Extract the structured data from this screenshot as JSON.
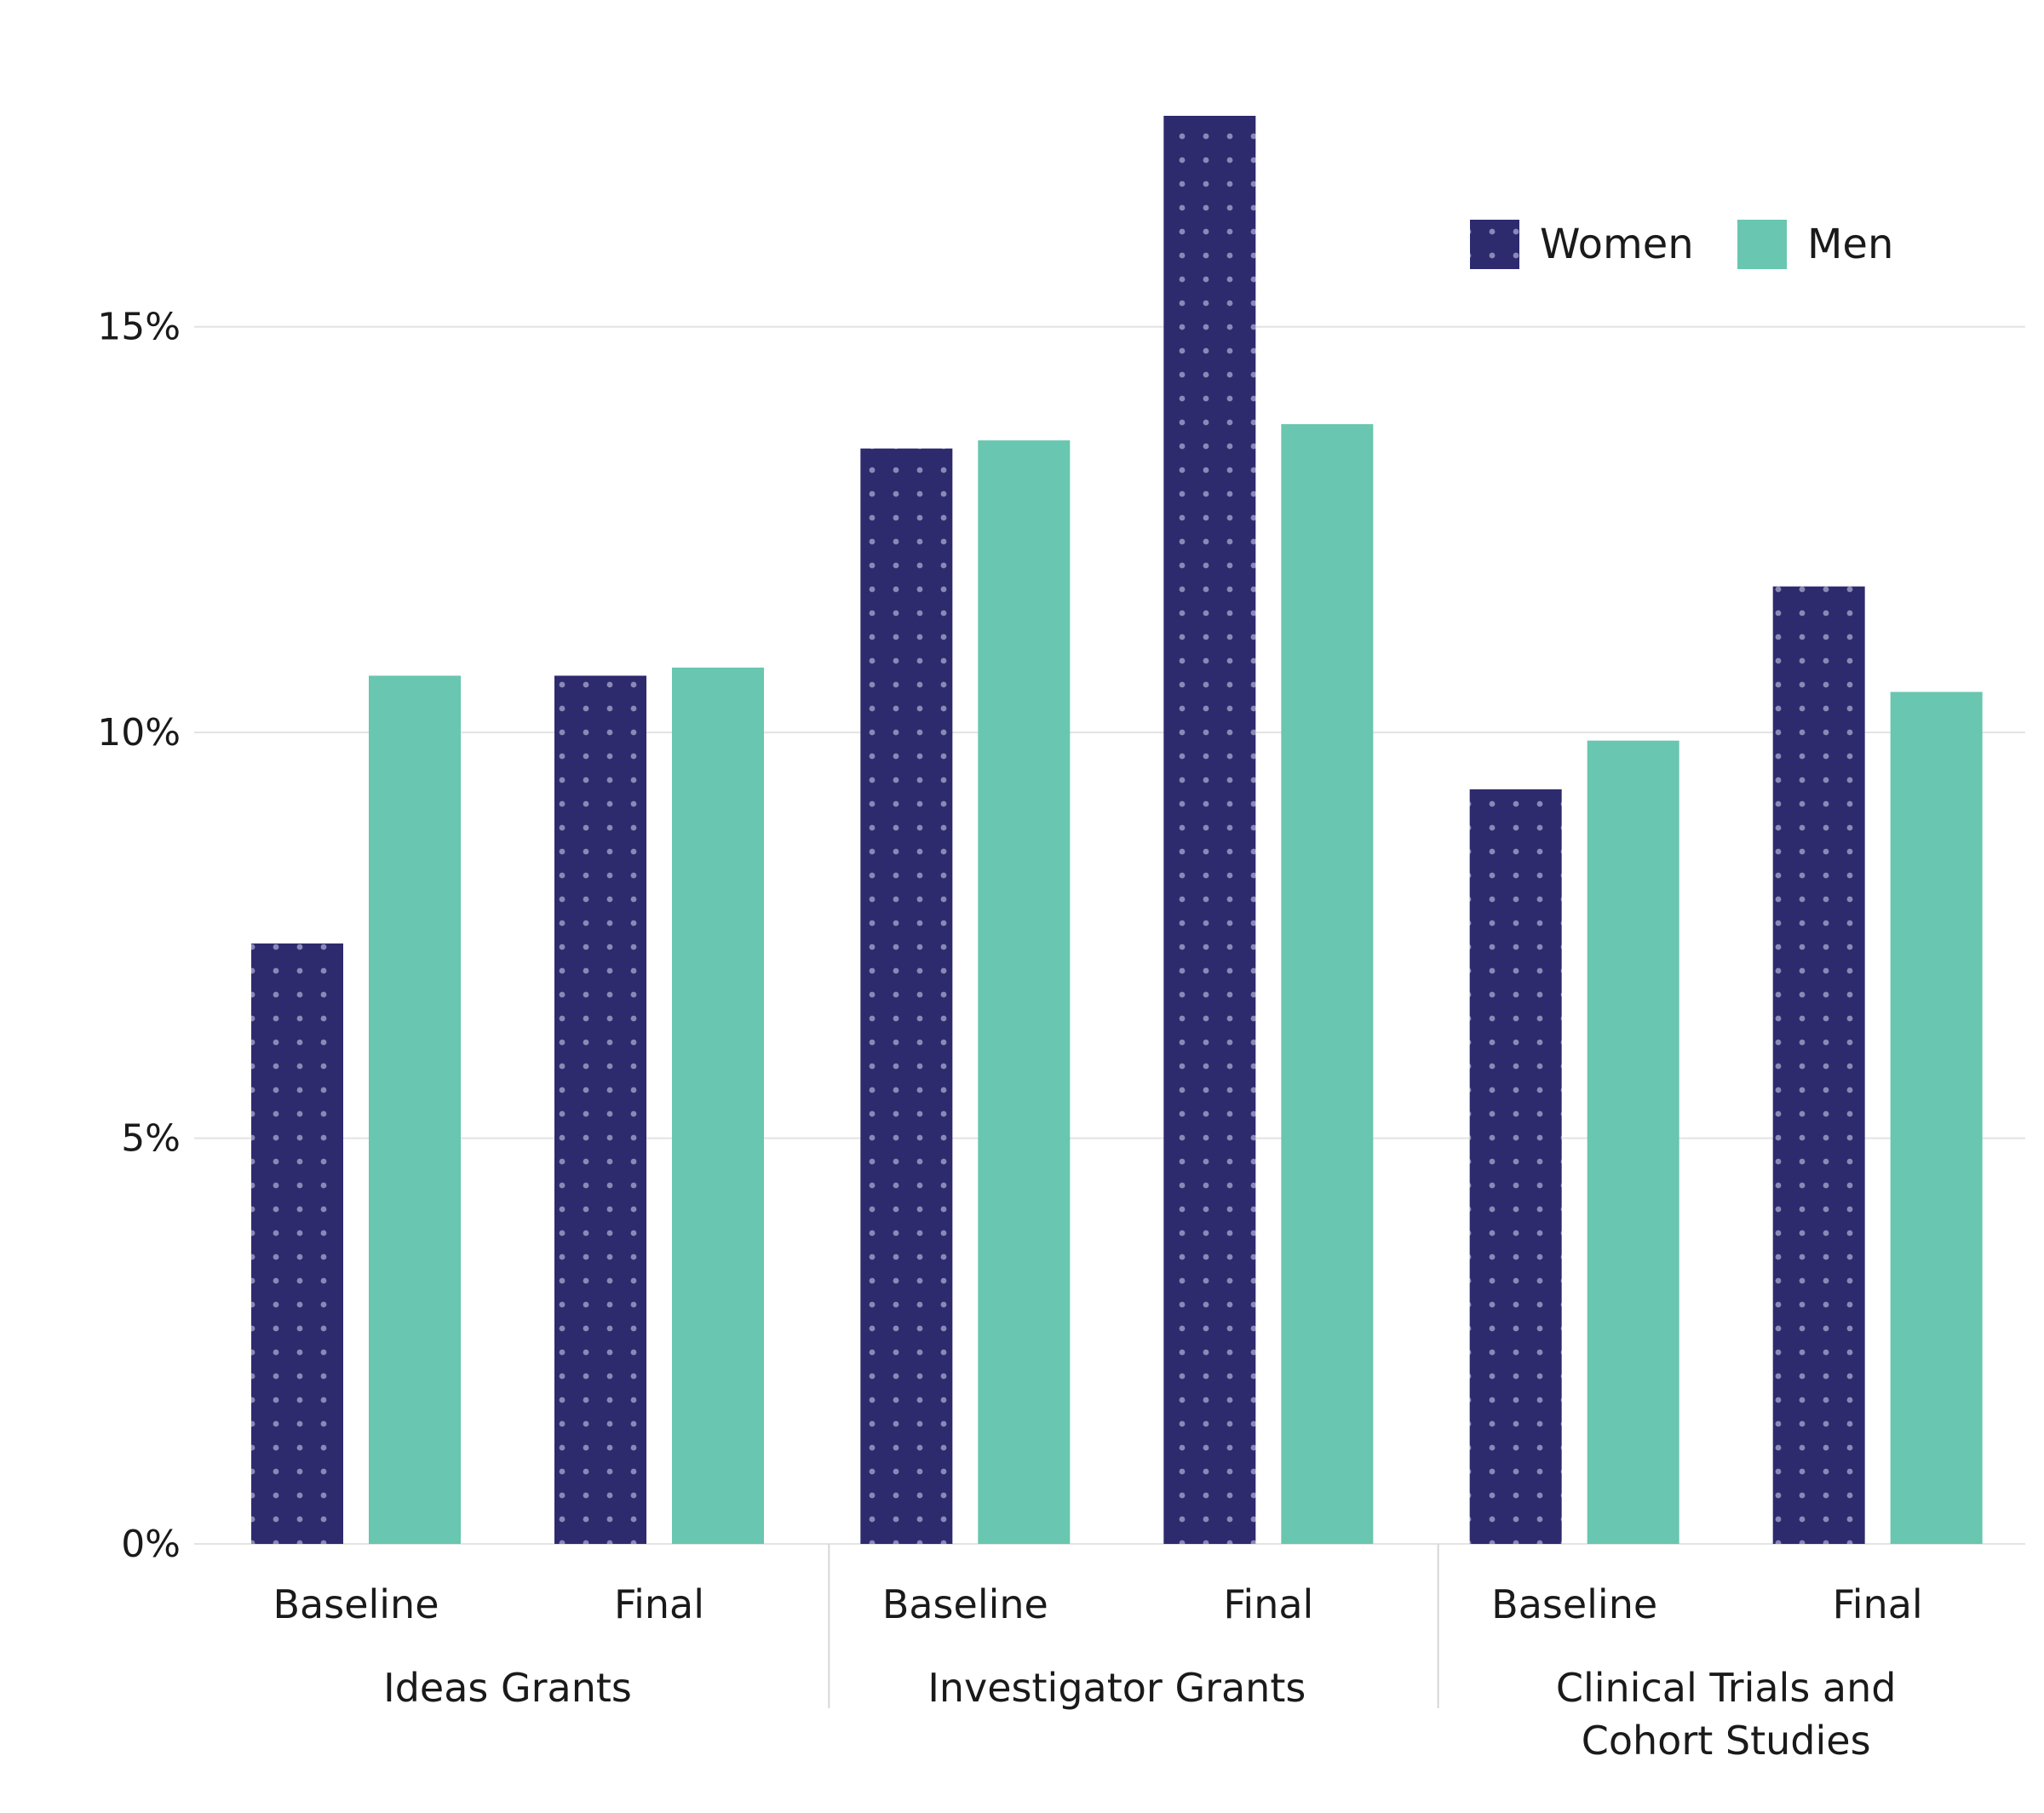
{
  "chart_data": {
    "type": "bar",
    "title": "",
    "xlabel": "",
    "ylabel": "",
    "ylim": [
      0,
      17.6
    ],
    "yticks": [
      0,
      5,
      10,
      15
    ],
    "ytick_labels": [
      "0%",
      "5%",
      "10%",
      "15%"
    ],
    "legend_position": "top-right",
    "grid": true,
    "groups": [
      {
        "name": "Ideas Grants",
        "label_lines": [
          "Ideas Grants"
        ],
        "categories": [
          "Baseline",
          "Final"
        ]
      },
      {
        "name": "Investigator Grants",
        "label_lines": [
          "Investigator Grants"
        ],
        "categories": [
          "Baseline",
          "Final"
        ]
      },
      {
        "name": "Clinical Trials and Cohort Studies",
        "label_lines": [
          "Clinical Trials and",
          "Cohort Studies"
        ],
        "categories": [
          "Baseline",
          "Final"
        ]
      }
    ],
    "series": [
      {
        "name": "Women",
        "color": "#2e2a6e",
        "pattern": "dots",
        "values": [
          7.4,
          10.7,
          13.5,
          17.6,
          9.3,
          11.8
        ]
      },
      {
        "name": "Men",
        "color": "#69c6b0",
        "pattern": "solid",
        "values": [
          10.7,
          10.8,
          13.6,
          13.8,
          9.9,
          10.5
        ]
      }
    ]
  }
}
